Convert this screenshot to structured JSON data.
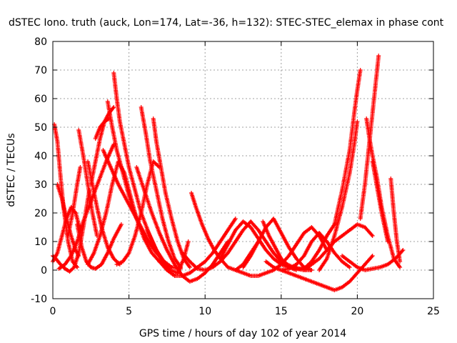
{
  "chart_data": {
    "type": "scatter",
    "title": "dSTEC Iono. truth (auck, Lon=174, Lat=-36, h=132): STEC-STEC_elemax in phase cont",
    "xlabel": "GPS time / hours of day 102 of year 2014",
    "ylabel": "dSTEC  / TECUs",
    "xlim": [
      0,
      25
    ],
    "ylim": [
      -10,
      80
    ],
    "xticks": [
      0,
      5,
      10,
      15,
      20,
      25
    ],
    "yticks": [
      -10,
      0,
      10,
      20,
      30,
      40,
      50,
      60,
      70,
      80
    ],
    "grid": true,
    "legend": "none",
    "marker": "plus",
    "color": "#ff0000",
    "series": [
      {
        "x": [
          0.0,
          0.2,
          0.5,
          0.8,
          1.1,
          1.4,
          1.7,
          2.0,
          2.4
        ],
        "y": [
          5,
          4,
          2,
          0.5,
          -0.5,
          1,
          6,
          15,
          28
        ]
      },
      {
        "x": [
          0.1,
          0.3,
          0.5,
          0.7,
          1.0,
          1.3,
          1.6
        ],
        "y": [
          51,
          45,
          33,
          22,
          10,
          3,
          1
        ]
      },
      {
        "x": [
          0.0,
          0.3,
          0.6,
          0.9,
          1.2,
          1.5,
          1.8
        ],
        "y": [
          3,
          6,
          12,
          18,
          22,
          20,
          14
        ]
      },
      {
        "x": [
          0.3,
          0.6,
          0.9,
          1.2,
          1.5,
          1.7
        ],
        "y": [
          30,
          25,
          18,
          12,
          7,
          5
        ]
      },
      {
        "x": [
          0.4,
          0.8,
          1.2,
          1.6,
          2.0,
          2.5,
          3.0,
          3.5,
          4.0
        ],
        "y": [
          0.5,
          2,
          5,
          10,
          17,
          24,
          31,
          38,
          44
        ]
      },
      {
        "x": [
          1.0,
          1.3,
          1.6,
          1.8
        ],
        "y": [
          12,
          20,
          30,
          36
        ]
      },
      {
        "x": [
          1.7,
          2.0,
          2.3,
          2.6,
          2.9
        ],
        "y": [
          49,
          40,
          30,
          20,
          12
        ]
      },
      {
        "x": [
          1.6,
          1.9,
          2.2,
          2.5,
          2.8,
          3.2,
          3.6,
          4.0,
          4.5
        ],
        "y": [
          16,
          8,
          3,
          1,
          0.5,
          2,
          6,
          11,
          16
        ]
      },
      {
        "x": [
          2.3,
          2.6,
          2.9,
          3.2,
          3.6,
          4.0,
          4.4
        ],
        "y": [
          38,
          30,
          22,
          15,
          8,
          4,
          2
        ]
      },
      {
        "x": [
          2.5,
          2.8,
          3.1,
          3.4,
          3.7,
          4.0
        ],
        "y": [
          30,
          38,
          46,
          52,
          55,
          57
        ]
      },
      {
        "x": [
          2.8,
          3.1,
          3.4,
          3.7
        ],
        "y": [
          46,
          50,
          52,
          53
        ]
      },
      {
        "x": [
          2.3,
          2.7,
          3.1,
          3.5,
          3.9,
          4.3,
          4.7,
          5.1,
          5.5
        ],
        "y": [
          2,
          6,
          12,
          20,
          30,
          38,
          34,
          26,
          18
        ]
      },
      {
        "x": [
          3.6,
          3.9,
          4.2,
          4.6,
          5.0,
          5.5,
          6.0,
          6.5,
          7.0,
          7.5
        ],
        "y": [
          59,
          50,
          42,
          34,
          26,
          18,
          11,
          6,
          3,
          1
        ]
      },
      {
        "x": [
          4.0,
          4.2,
          4.4,
          4.7,
          5.0,
          5.4,
          5.8,
          6.3,
          6.8,
          7.3,
          7.8
        ],
        "y": [
          69,
          60,
          52,
          44,
          36,
          28,
          20,
          13,
          7,
          3,
          1
        ]
      },
      {
        "x": [
          3.3,
          3.8,
          4.3,
          4.8,
          5.3,
          5.8,
          6.3,
          6.8,
          7.3,
          7.8,
          8.4
        ],
        "y": [
          42,
          36,
          30,
          25,
          20,
          15,
          10,
          6,
          3,
          1,
          0.5
        ]
      },
      {
        "x": [
          4.2,
          4.6,
          5.0,
          5.4,
          5.8,
          6.2,
          6.6,
          7.0
        ],
        "y": [
          2,
          3,
          6,
          12,
          20,
          30,
          38,
          36
        ]
      },
      {
        "x": [
          5.8,
          6.1,
          6.4,
          6.8,
          7.2,
          7.6,
          8.0,
          8.4
        ],
        "y": [
          57,
          48,
          38,
          28,
          18,
          10,
          4,
          1
        ]
      },
      {
        "x": [
          6.6,
          6.8,
          7.1,
          7.4,
          7.8,
          8.2,
          8.6,
          9.0
        ],
        "y": [
          53,
          45,
          36,
          27,
          18,
          10,
          4,
          1
        ]
      },
      {
        "x": [
          5.5,
          6.0,
          6.5,
          7.0,
          7.5,
          8.0,
          8.5,
          9.0,
          9.5,
          10.0,
          10.5,
          11.0,
          11.5
        ],
        "y": [
          36,
          28,
          20,
          13,
          7,
          2,
          -2,
          -4,
          -3,
          -1,
          2,
          6,
          10
        ]
      },
      {
        "x": [
          6.2,
          6.7,
          7.2,
          7.7,
          8.2,
          8.6,
          8.9
        ],
        "y": [
          14,
          8,
          3,
          0,
          -1,
          4,
          10
        ]
      },
      {
        "x": [
          7.0,
          7.5,
          8.0,
          8.5,
          9.0,
          9.5,
          10.0,
          10.5,
          11.0,
          11.5,
          12.0
        ],
        "y": [
          3,
          0,
          -2,
          -2,
          -1,
          1,
          3,
          6,
          10,
          14,
          18
        ]
      },
      {
        "x": [
          9.1,
          9.4,
          9.8,
          10.2,
          10.6,
          11.0,
          11.5,
          12.0,
          12.5,
          13.0,
          13.5
        ],
        "y": [
          27,
          22,
          16,
          11,
          7,
          4,
          1,
          0,
          2,
          6,
          10
        ]
      },
      {
        "x": [
          8.5,
          9.0,
          9.5,
          10.0,
          10.5,
          11.0,
          11.5,
          12.0,
          12.5,
          13.0,
          13.5,
          14.0,
          14.5,
          15.0,
          15.5,
          16.0
        ],
        "y": [
          6,
          3,
          0.5,
          0,
          1,
          3,
          6,
          10,
          14,
          17,
          14,
          10,
          6,
          3,
          1,
          0
        ]
      },
      {
        "x": [
          11.0,
          11.5,
          12.0,
          12.5,
          13.0,
          13.5,
          14.0,
          14.5,
          15.0,
          15.5,
          16.0,
          16.5,
          17.0
        ],
        "y": [
          4,
          9,
          14,
          17,
          15,
          11,
          7,
          4,
          2,
          1,
          0.5,
          0,
          0
        ]
      },
      {
        "x": [
          12.5,
          13.0,
          13.5,
          14.0,
          14.5,
          15.0,
          15.5,
          16.0,
          16.5,
          17.0
        ],
        "y": [
          1,
          5,
          10,
          15,
          18,
          13,
          8,
          4,
          1,
          0
        ]
      },
      {
        "x": [
          13.8,
          14.2,
          14.6,
          15.0,
          15.4,
          15.8,
          16.2,
          16.6,
          17.0,
          17.5,
          18.0,
          18.5
        ],
        "y": [
          17,
          12,
          8,
          4,
          2,
          1,
          0.5,
          1,
          3,
          7,
          12,
          16
        ]
      },
      {
        "x": [
          12.0,
          12.5,
          13.0,
          13.5,
          14.0,
          14.5,
          15.0,
          15.5,
          16.0,
          16.5,
          17.0,
          17.5,
          18.0
        ],
        "y": [
          0,
          -1,
          -2,
          -2,
          -1,
          0,
          2,
          5,
          9,
          13,
          15,
          12,
          7
        ]
      },
      {
        "x": [
          14.0,
          14.5,
          15.0,
          15.5,
          16.0,
          16.5,
          17.0,
          17.5,
          18.0,
          18.5,
          19.0,
          19.5
        ],
        "y": [
          3,
          1,
          0,
          0.5,
          2,
          5,
          10,
          13,
          10,
          6,
          3,
          1
        ]
      },
      {
        "x": [
          15.0,
          15.5,
          16.0,
          16.5,
          17.0,
          17.5,
          18.0,
          18.5,
          19.0,
          19.5,
          20.0,
          20.5,
          21.0
        ],
        "y": [
          0,
          -1,
          -2,
          -3,
          -4,
          -5,
          -6,
          -7,
          -6,
          -4,
          -1,
          2,
          5
        ]
      },
      {
        "x": [
          16.5,
          17.0,
          17.5,
          18.0,
          18.5,
          19.0,
          19.5,
          20.0,
          20.5,
          21.0
        ],
        "y": [
          0,
          2,
          4,
          7,
          10,
          12,
          14,
          16,
          15,
          12
        ]
      },
      {
        "x": [
          18.5,
          19.0,
          19.5,
          19.8,
          20.0,
          20.2
        ],
        "y": [
          16,
          28,
          42,
          55,
          63,
          70
        ]
      },
      {
        "x": [
          17.5,
          18.0,
          18.5,
          19.0,
          19.5,
          19.8,
          20.0
        ],
        "y": [
          0,
          4,
          12,
          22,
          34,
          44,
          52
        ]
      },
      {
        "x": [
          19.0,
          19.5,
          20.0,
          20.5,
          21.0,
          21.5,
          22.0,
          22.5,
          23.0
        ],
        "y": [
          5,
          3,
          1,
          0,
          0.5,
          1,
          2,
          4,
          7
        ]
      },
      {
        "x": [
          20.6,
          20.8,
          21.0,
          21.3,
          21.6,
          22.0,
          22.4,
          22.8
        ],
        "y": [
          53,
          46,
          40,
          32,
          22,
          12,
          4,
          1
        ]
      },
      {
        "x": [
          20.2,
          20.5,
          20.8,
          21.1,
          21.4
        ],
        "y": [
          18,
          30,
          45,
          60,
          75
        ]
      },
      {
        "x": [
          21.0,
          21.2,
          21.4,
          21.6,
          21.8,
          22.0
        ],
        "y": [
          38,
          32,
          26,
          20,
          15,
          10
        ]
      },
      {
        "x": [
          22.2,
          22.4,
          22.6,
          22.8
        ],
        "y": [
          32,
          20,
          10,
          3
        ]
      }
    ]
  }
}
